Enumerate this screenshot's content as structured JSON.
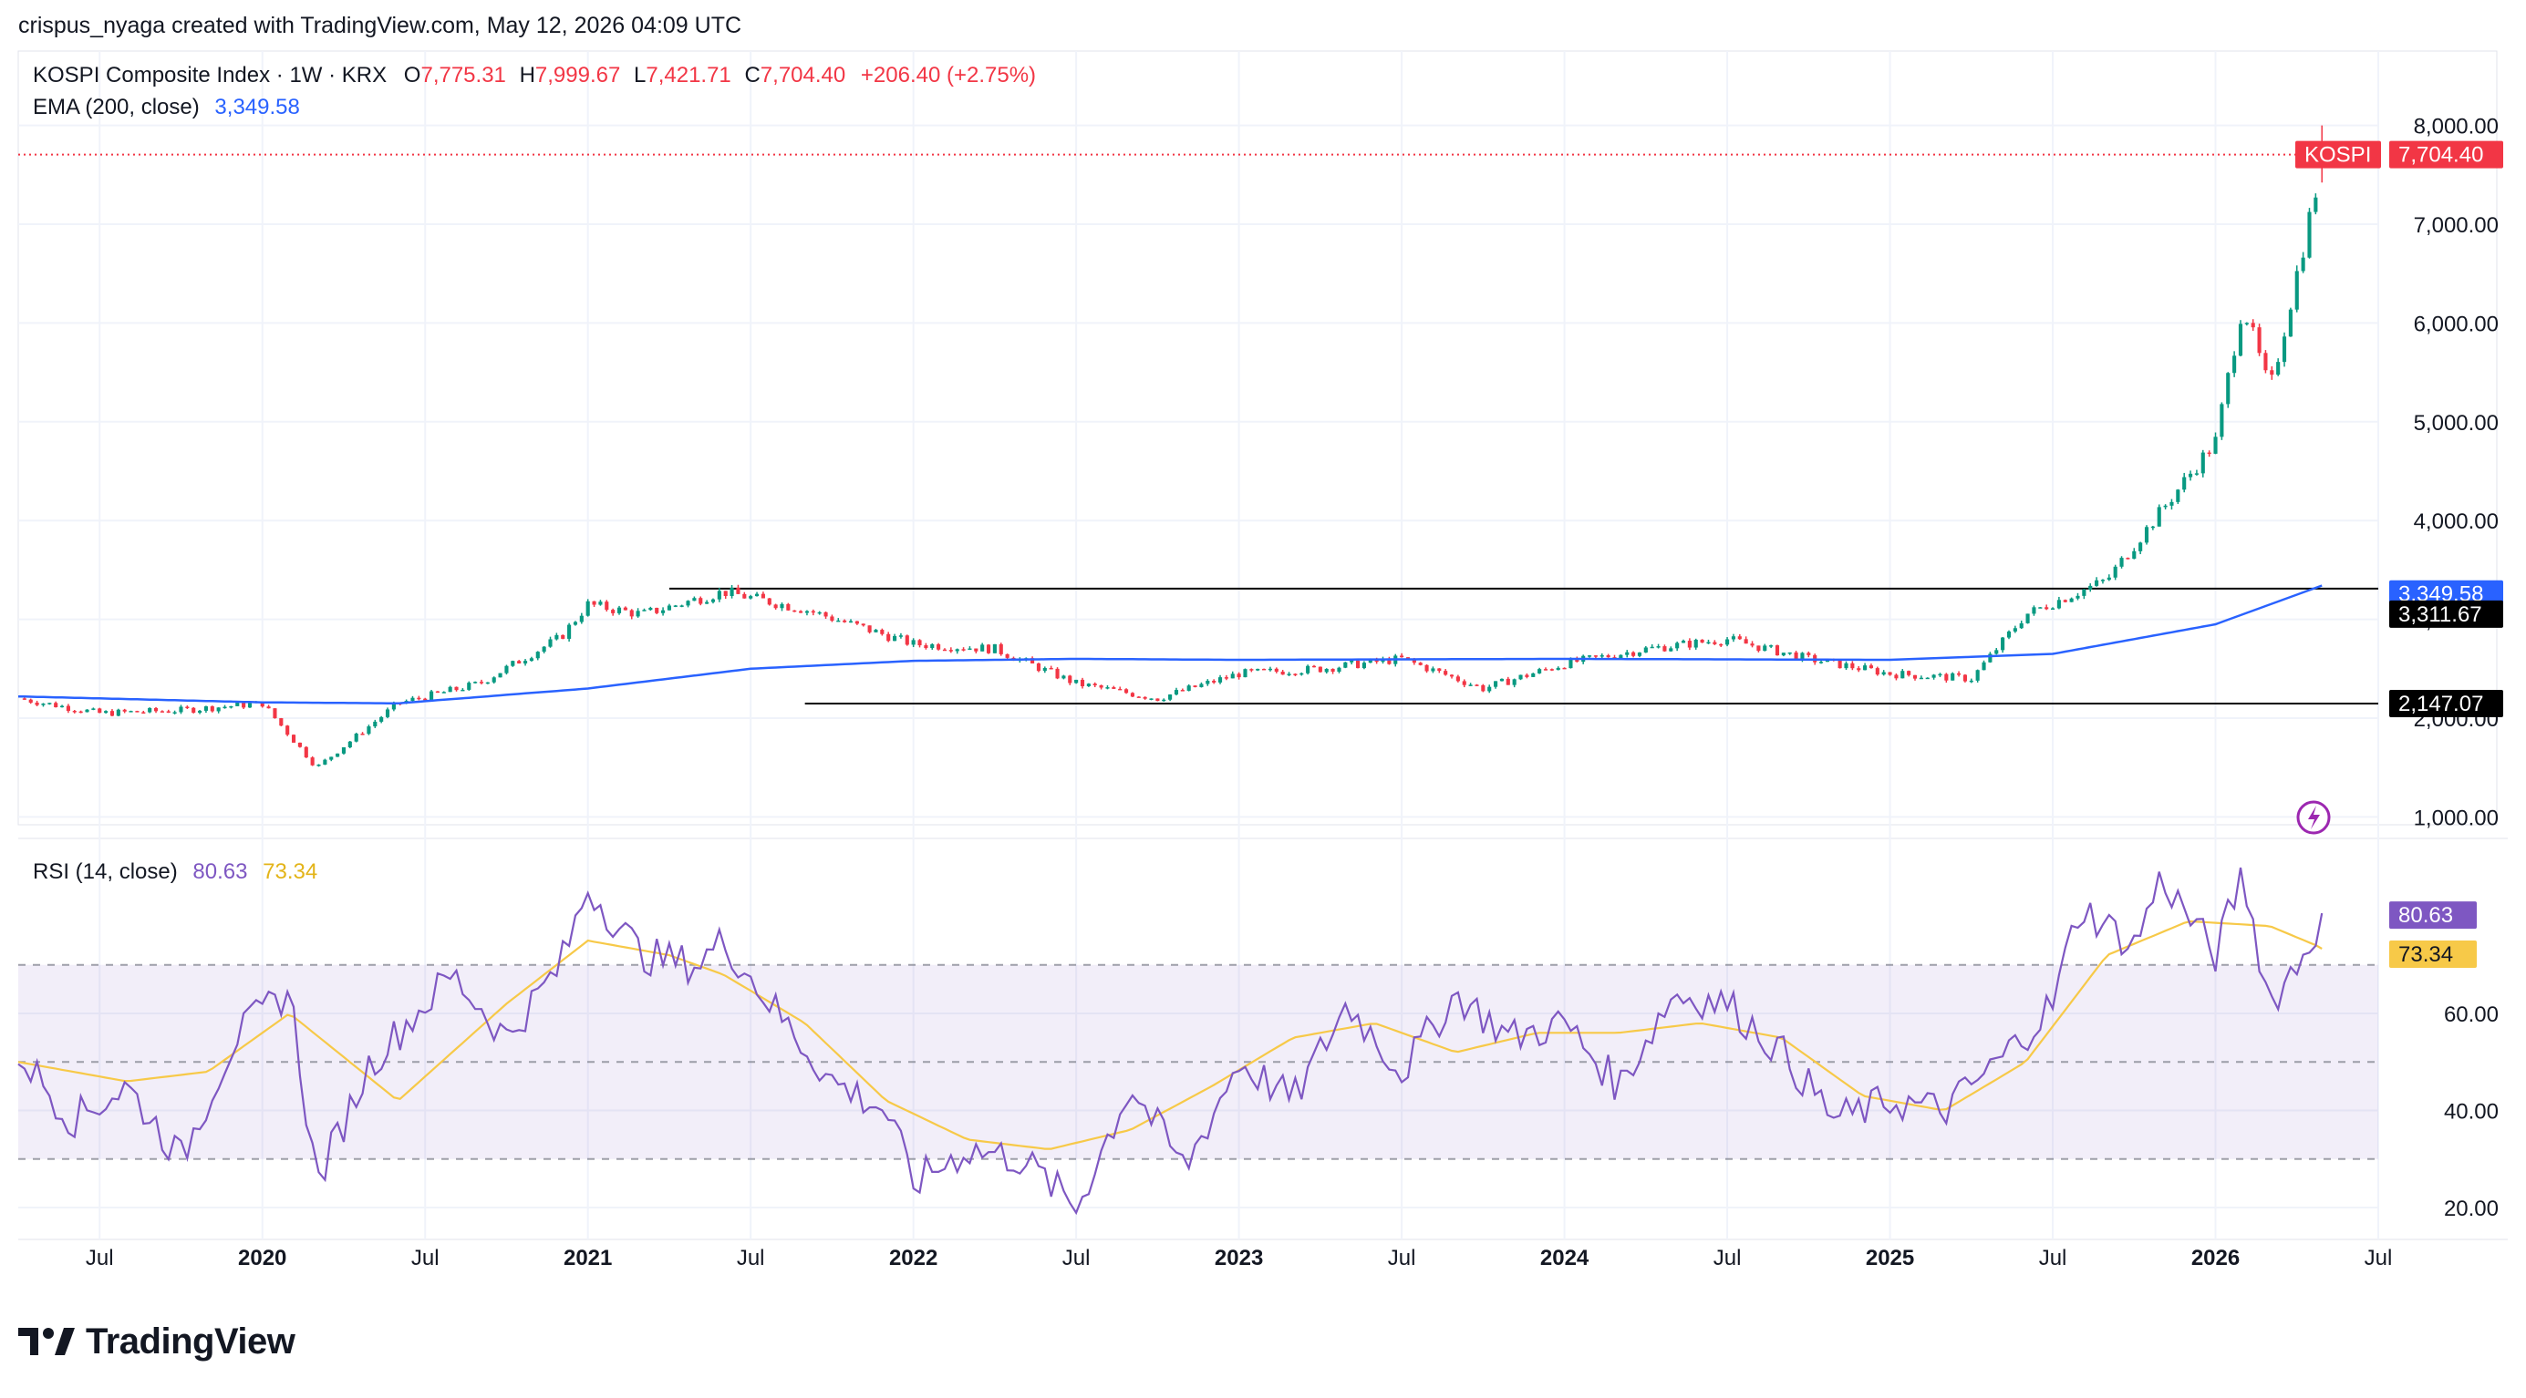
{
  "attribution": "crispus_nyaga created with TradingView.com, May 12, 2026 04:09 UTC",
  "legend": {
    "symbol": "KOSPI Composite Index · 1W · KRX",
    "o_label": "O",
    "o_value": "7,775.31",
    "h_label": "H",
    "h_value": "7,999.67",
    "l_label": "L",
    "l_value": "7,421.71",
    "c_label": "C",
    "c_value": "7,704.40",
    "change": "+206.40 (+2.75%)",
    "ema_label": "EMA (200, close)",
    "ema_value": "3,349.58",
    "rsi_label": "RSI (14, close)",
    "rsi_value": "80.63",
    "rsi_ma_value": "73.34"
  },
  "colors": {
    "up": "#089981",
    "down": "#f23645",
    "ema": "#2962ff",
    "rsi": "#7e57c2",
    "rsi_ma": "#f7c948",
    "price_badge": "#f23645",
    "level_badge": "#000000"
  },
  "price_badges": {
    "symbol": "KOSPI",
    "last": "7,704.40",
    "ema": "3,349.58",
    "level_high": "3,311.67",
    "level_low": "2,147.07",
    "rsi": "80.63",
    "rsi_ma": "73.34"
  },
  "logo_text": "TradingView",
  "chart_data": [
    {
      "type": "candlestick",
      "title": "KOSPI Composite Index · 1W · KRX",
      "ylim": [
        1000,
        8000
      ],
      "y_ticks": [
        "1,000.00",
        "2,000.00",
        "3,000.00",
        "4,000.00",
        "5,000.00",
        "6,000.00",
        "7,000.00",
        "8,000.00"
      ],
      "x_ticks": [
        "Jul",
        "2020",
        "Jul",
        "2021",
        "Jul",
        "2022",
        "Jul",
        "2023",
        "Jul",
        "2024",
        "Jul",
        "2025",
        "Jul",
        "2026",
        "Jul"
      ],
      "x_range": [
        "2019-04",
        "2026-07"
      ],
      "last": {
        "open": 7775.31,
        "high": 7999.67,
        "low": 7421.71,
        "close": 7704.4,
        "change": 206.4,
        "change_pct": 2.75
      },
      "horizontal_lines": [
        {
          "value": 3311.67,
          "from": "2021-04",
          "to": "2026-05"
        },
        {
          "value": 2147.07,
          "from": "2021-09",
          "to": "2026-05"
        }
      ],
      "series": [
        {
          "name": "KOSPI",
          "x": [
            "2019-04",
            "2019-07",
            "2019-10",
            "2020-01",
            "2020-03",
            "2020-06",
            "2020-09",
            "2020-12",
            "2021-01",
            "2021-03",
            "2021-06",
            "2021-09",
            "2022-01",
            "2022-04",
            "2022-07",
            "2022-10",
            "2023-01",
            "2023-04",
            "2023-07",
            "2023-10",
            "2024-01",
            "2024-04",
            "2024-07",
            "2024-10",
            "2025-01",
            "2025-04",
            "2025-06",
            "2025-09",
            "2025-11",
            "2026-01",
            "2026-02",
            "2026-03",
            "2026-04",
            "2026-05"
          ],
          "values": [
            2200,
            2050,
            2080,
            2150,
            1500,
            2150,
            2350,
            2820,
            3150,
            3050,
            3280,
            3100,
            2750,
            2700,
            2350,
            2200,
            2450,
            2500,
            2600,
            2300,
            2550,
            2700,
            2800,
            2600,
            2450,
            2400,
            3050,
            3400,
            4100,
            4800,
            6200,
            5300,
            6500,
            7704
          ]
        },
        {
          "name": "EMA (200, close)",
          "x": [
            "2019-04",
            "2020-01",
            "2020-06",
            "2021-01",
            "2021-07",
            "2022-01",
            "2022-07",
            "2023-01",
            "2024-01",
            "2025-01",
            "2025-07",
            "2026-01",
            "2026-05"
          ],
          "values": [
            2220,
            2160,
            2150,
            2300,
            2500,
            2580,
            2600,
            2590,
            2600,
            2590,
            2650,
            2950,
            3350
          ]
        }
      ]
    },
    {
      "type": "line",
      "title": "RSI (14, close)",
      "ylim": [
        15,
        95
      ],
      "y_ticks": [
        "20.00",
        "40.00",
        "60.00"
      ],
      "bands": [
        30,
        50,
        70
      ],
      "series": [
        {
          "name": "RSI",
          "x": [
            "2019-04",
            "2019-06",
            "2019-08",
            "2019-10",
            "2019-12",
            "2020-02",
            "2020-03",
            "2020-05",
            "2020-08",
            "2020-10",
            "2020-12",
            "2021-01",
            "2021-03",
            "2021-05",
            "2021-06",
            "2021-08",
            "2021-10",
            "2021-12",
            "2022-01",
            "2022-03",
            "2022-05",
            "2022-07",
            "2022-09",
            "2022-11",
            "2023-01",
            "2023-03",
            "2023-05",
            "2023-07",
            "2023-09",
            "2023-11",
            "2024-01",
            "2024-03",
            "2024-05",
            "2024-07",
            "2024-09",
            "2024-11",
            "2025-01",
            "2025-03",
            "2025-05",
            "2025-07",
            "2025-08",
            "2025-10",
            "2025-11",
            "2026-01",
            "2026-02",
            "2026-03",
            "2026-04",
            "2026-05"
          ],
          "values": [
            52,
            38,
            45,
            30,
            55,
            65,
            25,
            50,
            68,
            55,
            70,
            86,
            72,
            70,
            75,
            60,
            46,
            40,
            25,
            32,
            30,
            20,
            45,
            28,
            50,
            42,
            62,
            48,
            64,
            55,
            58,
            45,
            64,
            62,
            52,
            38,
            42,
            40,
            50,
            62,
            82,
            74,
            88,
            72,
            89,
            62,
            70,
            80.63
          ]
        },
        {
          "name": "RSI-based MA",
          "x": [
            "2019-04",
            "2019-08",
            "2019-11",
            "2020-02",
            "2020-06",
            "2020-10",
            "2021-01",
            "2021-04",
            "2021-06",
            "2021-09",
            "2021-12",
            "2022-03",
            "2022-06",
            "2022-09",
            "2022-12",
            "2023-03",
            "2023-06",
            "2023-09",
            "2023-12",
            "2024-03",
            "2024-06",
            "2024-09",
            "2024-12",
            "2025-03",
            "2025-06",
            "2025-09",
            "2025-12",
            "2026-03",
            "2026-05"
          ],
          "values": [
            50,
            46,
            48,
            60,
            42,
            62,
            75,
            72,
            68,
            58,
            42,
            34,
            32,
            36,
            45,
            55,
            58,
            52,
            56,
            56,
            58,
            55,
            43,
            40,
            50,
            72,
            79,
            78,
            73.34
          ]
        }
      ]
    }
  ]
}
